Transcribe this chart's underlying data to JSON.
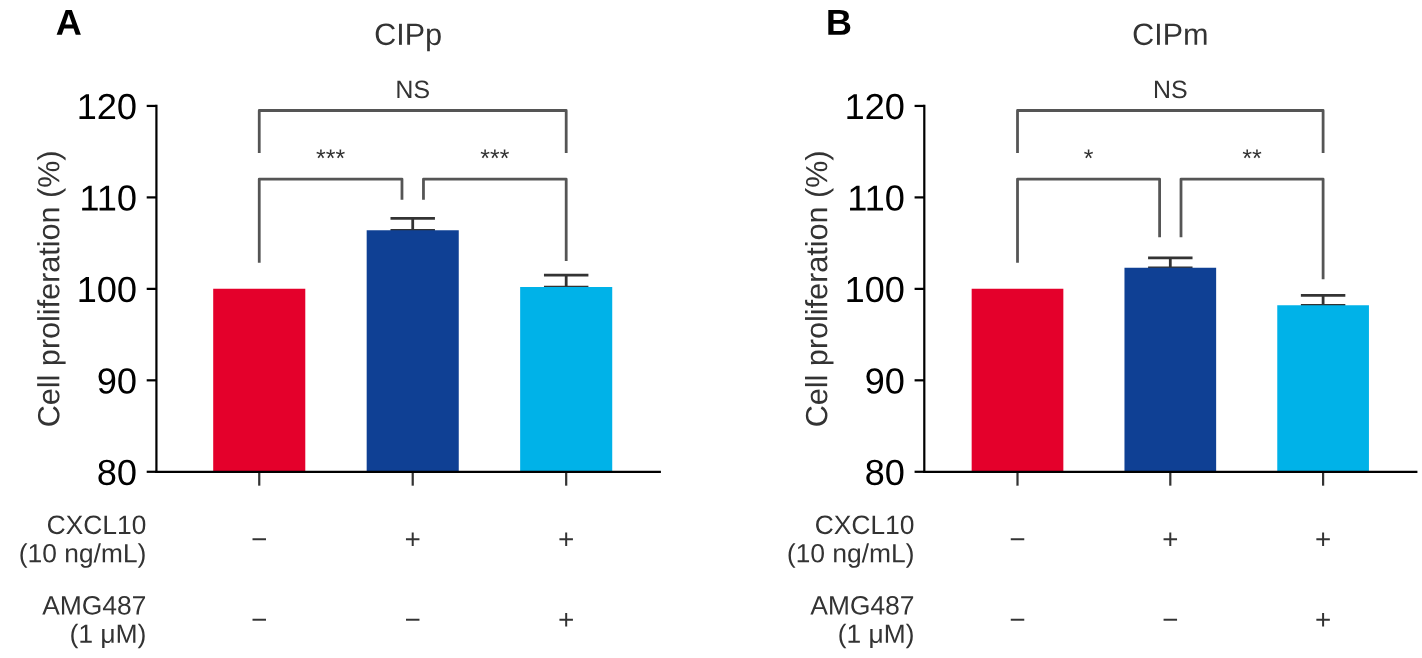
{
  "chart_data": [
    {
      "type": "bar",
      "title": "CIPp",
      "ylabel": "Cell proliferation (%)",
      "categories": [
        "−\n−",
        "+\n−",
        "+\n+"
      ],
      "values": [
        100,
        106.4,
        100.2
      ],
      "errors": [
        null,
        [
          106.4,
          107.7
        ],
        [
          100.2,
          101.5
        ]
      ],
      "colors": [
        "#e4002b",
        "#0f4094",
        "#00b2e8"
      ],
      "ylim": [
        80,
        120
      ],
      "yticks": [
        80,
        90,
        100,
        110,
        120
      ],
      "grid": false,
      "legend": false,
      "annotations": [
        "A",
        "CXCL10\n(10 ng/mL)",
        "AMG487\n(1 μM)",
        "NS",
        "***",
        "***"
      ]
    },
    {
      "type": "bar",
      "title": "CIPm",
      "ylabel": "Cell proliferation (%)",
      "categories": [
        "−\n−",
        "+\n−",
        "+\n+"
      ],
      "values": [
        100,
        102.3,
        98.2
      ],
      "errors": [
        null,
        [
          102.3,
          103.4
        ],
        [
          98.2,
          99.3
        ]
      ],
      "colors": [
        "#e4002b",
        "#0f4094",
        "#00b2e8"
      ],
      "ylim": [
        80,
        120
      ],
      "yticks": [
        80,
        90,
        100,
        110,
        120
      ],
      "grid": false,
      "legend": false,
      "annotations": [
        "B",
        "CXCL10\n(10 ng/mL)",
        "AMG487\n(1 μM)",
        "NS",
        "*",
        "**"
      ]
    }
  ]
}
